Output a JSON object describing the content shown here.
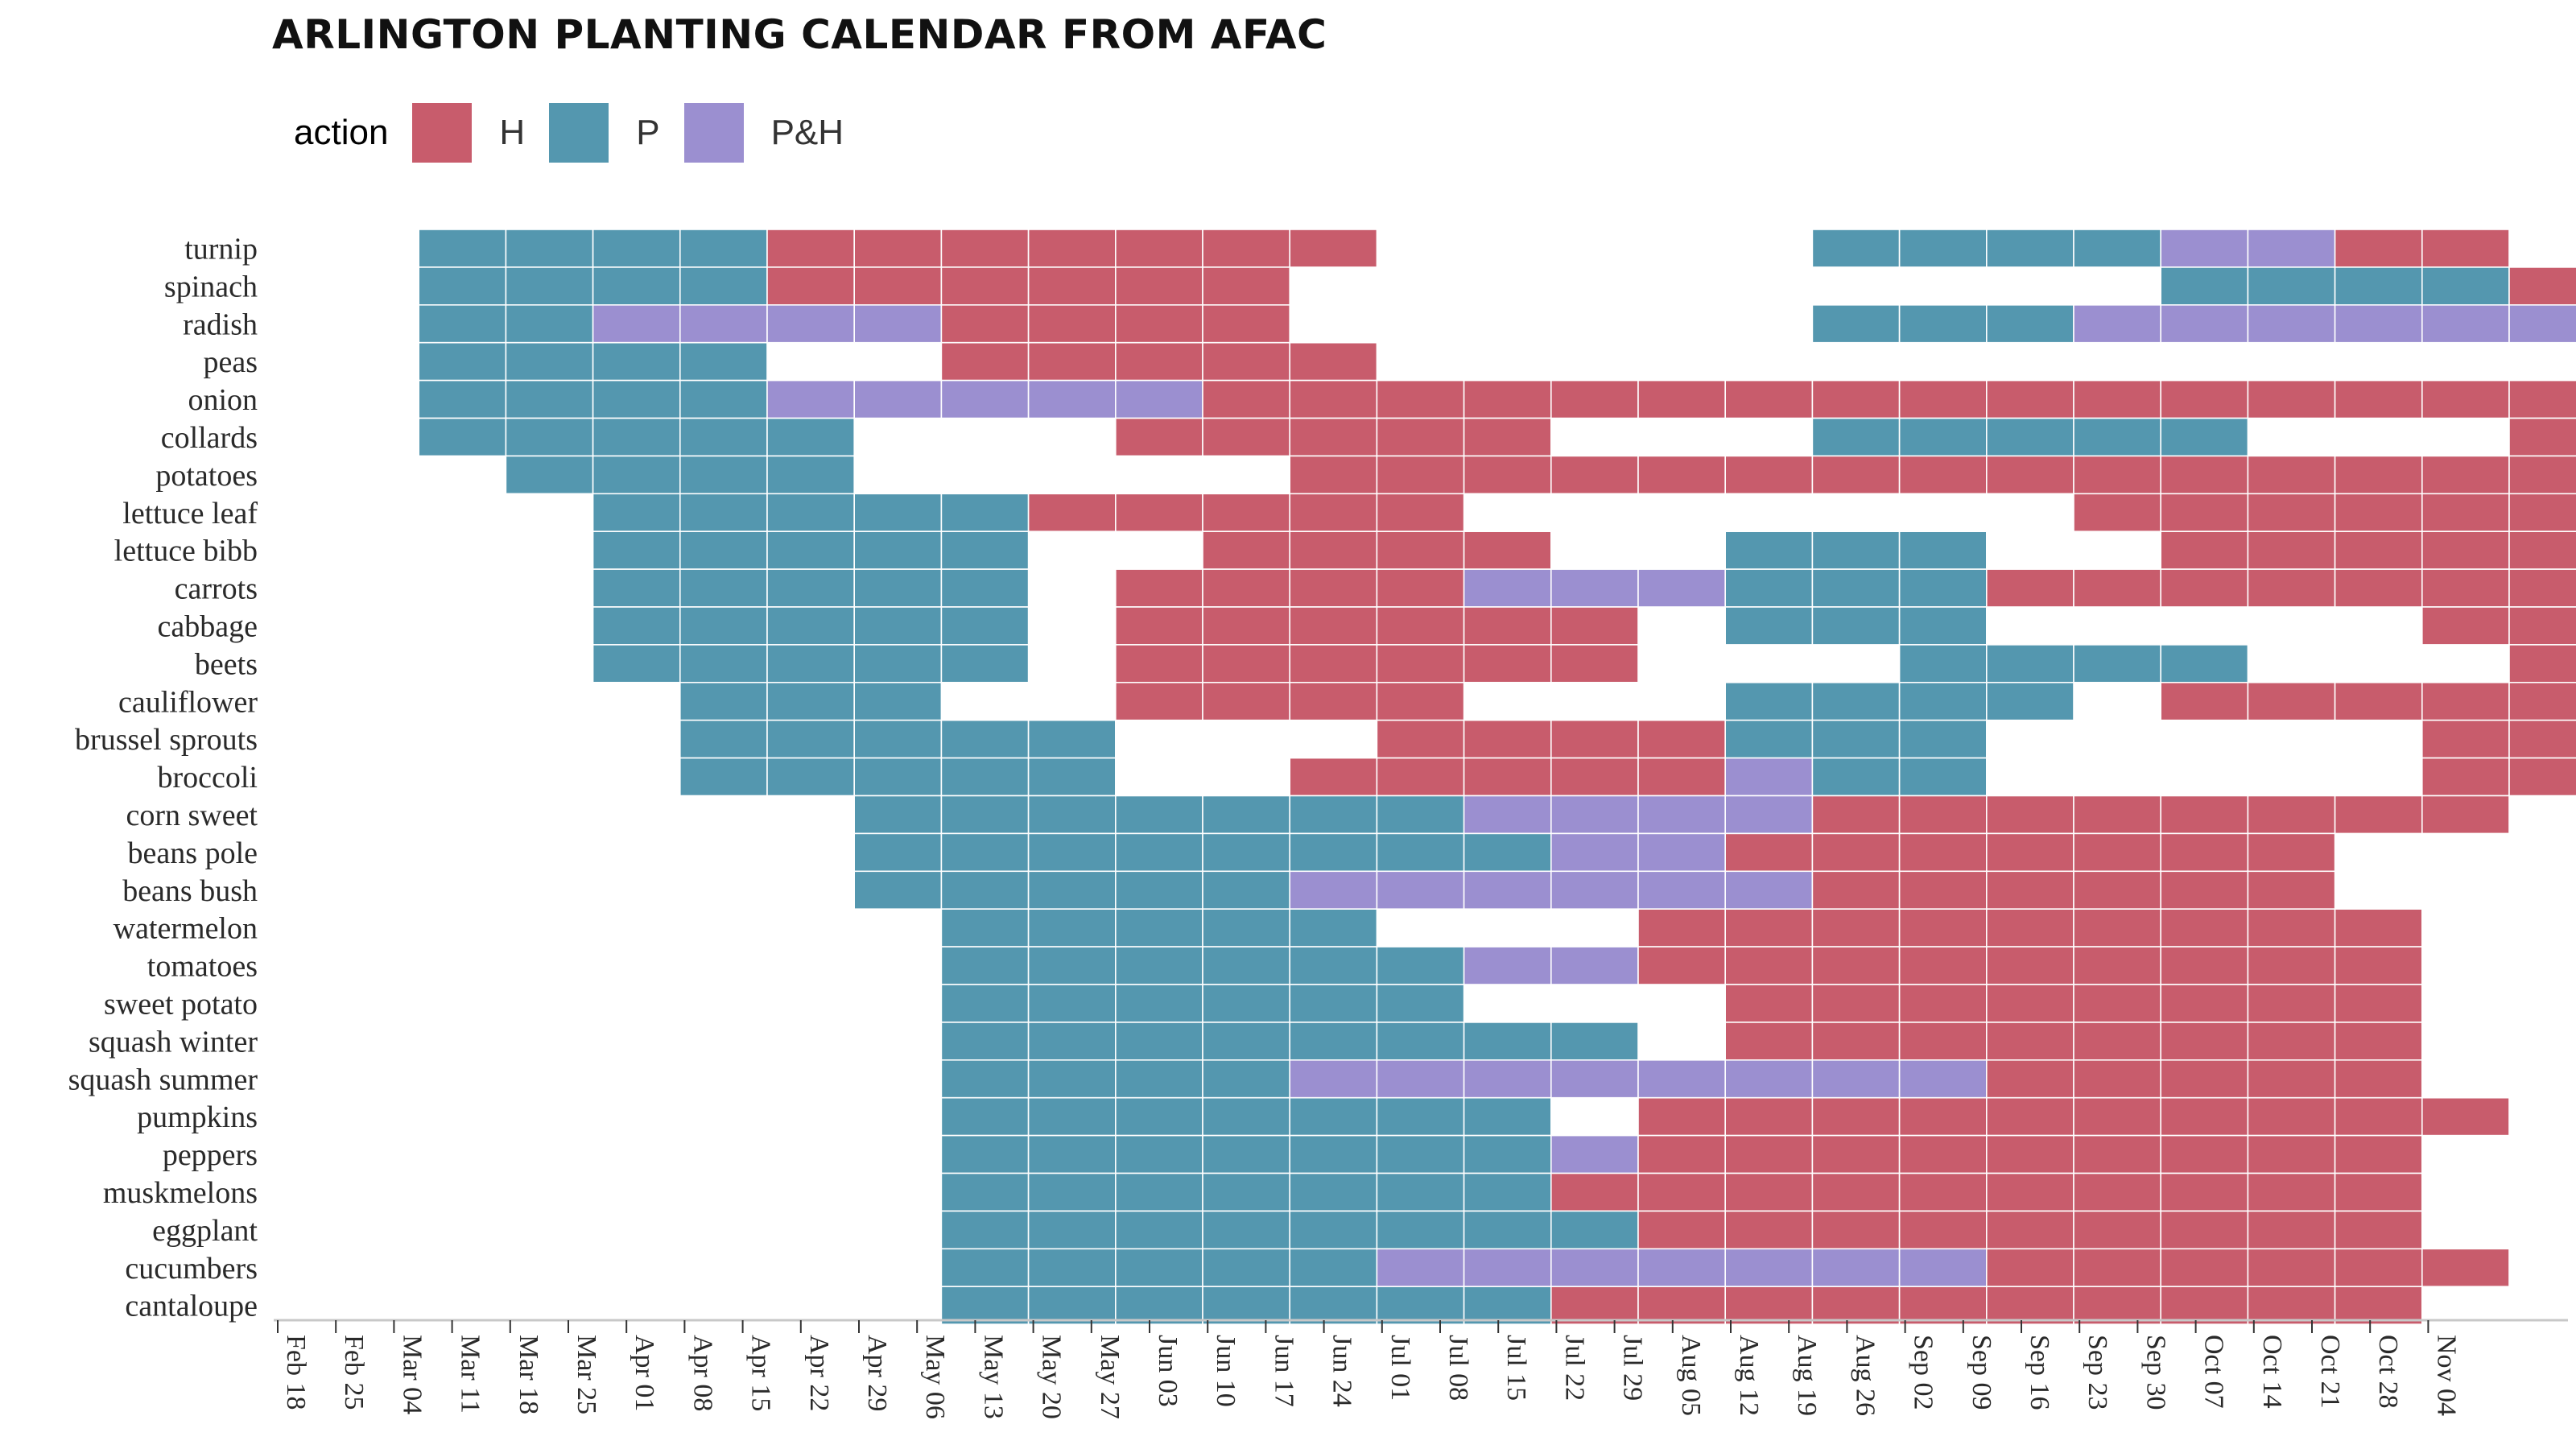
{
  "chart_data": {
    "type": "heatmap",
    "title": "ARLINGTON PLANTING CALENDAR FROM AFAC",
    "legend": {
      "title": "action",
      "items": [
        {
          "label": "H",
          "color": "#c85c6c"
        },
        {
          "label": "P",
          "color": "#5497af"
        },
        {
          "label": "P&H",
          "color": "#9b8fd0"
        }
      ]
    },
    "x_ticks": [
      "Feb 18",
      "Feb 25",
      "Mar 04",
      "Mar 11",
      "Mar 18",
      "Mar 25",
      "Apr 01",
      "Apr 08",
      "Apr 15",
      "Apr 22",
      "Apr 29",
      "May 06",
      "May 13",
      "May 20",
      "May 27",
      "Jun 03",
      "Jun 10",
      "Jun 17",
      "Jun 24",
      "Jul 01",
      "Jul 08",
      "Jul 15",
      "Jul 22",
      "Jul 29",
      "Aug 05",
      "Aug 12",
      "Aug 19",
      "Aug 26",
      "Sep 02",
      "Sep 09",
      "Sep 16",
      "Sep 23",
      "Sep 30",
      "Oct 07",
      "Oct 14",
      "Oct 21",
      "Oct 28",
      "Nov 04"
    ],
    "rows": [
      {
        "crop": "turnip",
        "spans": [
          [
            "P",
            1,
            5
          ],
          [
            "H",
            5,
            12
          ],
          [
            "P",
            17,
            21
          ],
          [
            "P&H",
            21,
            23
          ],
          [
            "H",
            23,
            25
          ]
        ]
      },
      {
        "crop": "spinach",
        "spans": [
          [
            "P",
            1,
            5
          ],
          [
            "H",
            5,
            11
          ],
          [
            "P",
            21,
            25
          ],
          [
            "H",
            25,
            26
          ]
        ]
      },
      {
        "crop": "radish",
        "spans": [
          [
            "P",
            1,
            3
          ],
          [
            "P&H",
            3,
            7
          ],
          [
            "H",
            7,
            11
          ],
          [
            "P",
            17,
            20
          ],
          [
            "P&H",
            20,
            27
          ]
        ]
      },
      {
        "crop": "peas",
        "spans": [
          [
            "P",
            1,
            5
          ],
          [
            "H",
            7,
            12
          ]
        ]
      },
      {
        "crop": "onion",
        "spans": [
          [
            "P",
            1,
            5
          ],
          [
            "P&H",
            5,
            10
          ],
          [
            "H",
            10,
            27
          ]
        ]
      },
      {
        "crop": "collards",
        "spans": [
          [
            "P",
            1,
            6
          ],
          [
            "H",
            9,
            14
          ],
          [
            "P",
            17,
            22
          ],
          [
            "H",
            25,
            27
          ]
        ]
      },
      {
        "crop": "potatoes",
        "spans": [
          [
            "P",
            2,
            6
          ],
          [
            "H",
            11,
            26
          ]
        ]
      },
      {
        "crop": "lettuce leaf",
        "spans": [
          [
            "P",
            3,
            8
          ],
          [
            "H",
            8,
            13
          ],
          [
            "H",
            20,
            27
          ]
        ]
      },
      {
        "crop": "lettuce bibb",
        "spans": [
          [
            "P",
            3,
            8
          ],
          [
            "H",
            10,
            14
          ],
          [
            "P",
            16,
            19
          ],
          [
            "H",
            21,
            27
          ]
        ]
      },
      {
        "crop": "carrots",
        "spans": [
          [
            "P",
            3,
            8
          ],
          [
            "H",
            9,
            13
          ],
          [
            "P&H",
            13,
            16
          ],
          [
            "P",
            16,
            19
          ],
          [
            "H",
            19,
            27
          ]
        ]
      },
      {
        "crop": "cabbage",
        "spans": [
          [
            "P",
            3,
            8
          ],
          [
            "H",
            9,
            15
          ],
          [
            "P",
            16,
            19
          ],
          [
            "H",
            24,
            27
          ]
        ]
      },
      {
        "crop": "beets",
        "spans": [
          [
            "P",
            3,
            8
          ],
          [
            "H",
            9,
            15
          ],
          [
            "P",
            18,
            22
          ],
          [
            "H",
            25,
            27
          ]
        ]
      },
      {
        "crop": "cauliflower",
        "spans": [
          [
            "P",
            4,
            7
          ],
          [
            "H",
            9,
            13
          ],
          [
            "P",
            16,
            20
          ],
          [
            "H",
            21,
            27
          ]
        ]
      },
      {
        "crop": "brussel sprouts",
        "spans": [
          [
            "P",
            4,
            9
          ],
          [
            "H",
            12,
            16
          ],
          [
            "P",
            16,
            19
          ],
          [
            "H",
            24,
            27
          ]
        ]
      },
      {
        "crop": "broccoli",
        "spans": [
          [
            "P",
            4,
            9
          ],
          [
            "H",
            11,
            16
          ],
          [
            "P&H",
            16,
            17
          ],
          [
            "P",
            17,
            19
          ],
          [
            "H",
            24,
            27
          ]
        ]
      },
      {
        "crop": "corn sweet",
        "spans": [
          [
            "P",
            6,
            13
          ],
          [
            "P&H",
            13,
            17
          ],
          [
            "H",
            17,
            25
          ]
        ]
      },
      {
        "crop": "beans pole",
        "spans": [
          [
            "P",
            6,
            14
          ],
          [
            "P&H",
            14,
            16
          ],
          [
            "H",
            16,
            23
          ]
        ]
      },
      {
        "crop": "beans bush",
        "spans": [
          [
            "P",
            6,
            11
          ],
          [
            "P&H",
            11,
            17
          ],
          [
            "H",
            17,
            23
          ]
        ]
      },
      {
        "crop": "watermelon",
        "spans": [
          [
            "P",
            7,
            12
          ],
          [
            "H",
            15,
            24
          ]
        ]
      },
      {
        "crop": "tomatoes",
        "spans": [
          [
            "P",
            7,
            13
          ],
          [
            "P&H",
            13,
            15
          ],
          [
            "H",
            15,
            24
          ]
        ]
      },
      {
        "crop": "sweet potato",
        "spans": [
          [
            "P",
            7,
            13
          ],
          [
            "H",
            16,
            24
          ]
        ]
      },
      {
        "crop": "squash winter",
        "spans": [
          [
            "P",
            7,
            15
          ],
          [
            "H",
            16,
            24
          ]
        ]
      },
      {
        "crop": "squash summer",
        "spans": [
          [
            "P",
            7,
            11
          ],
          [
            "P&H",
            11,
            19
          ],
          [
            "H",
            19,
            24
          ]
        ]
      },
      {
        "crop": "pumpkins",
        "spans": [
          [
            "P",
            7,
            14
          ],
          [
            "H",
            15,
            25
          ]
        ]
      },
      {
        "crop": "peppers",
        "spans": [
          [
            "P",
            7,
            14
          ],
          [
            "P&H",
            14,
            15
          ],
          [
            "H",
            15,
            24
          ]
        ]
      },
      {
        "crop": "muskmelons",
        "spans": [
          [
            "P",
            7,
            14
          ],
          [
            "H",
            14,
            24
          ]
        ]
      },
      {
        "crop": "eggplant",
        "spans": [
          [
            "P",
            7,
            15
          ],
          [
            "H",
            15,
            24
          ]
        ]
      },
      {
        "crop": "cucumbers",
        "spans": [
          [
            "P",
            7,
            12
          ],
          [
            "P&H",
            12,
            19
          ],
          [
            "H",
            19,
            25
          ]
        ]
      },
      {
        "crop": "cantaloupe",
        "spans": [
          [
            "P",
            7,
            14
          ],
          [
            "H",
            14,
            24
          ]
        ]
      }
    ]
  }
}
